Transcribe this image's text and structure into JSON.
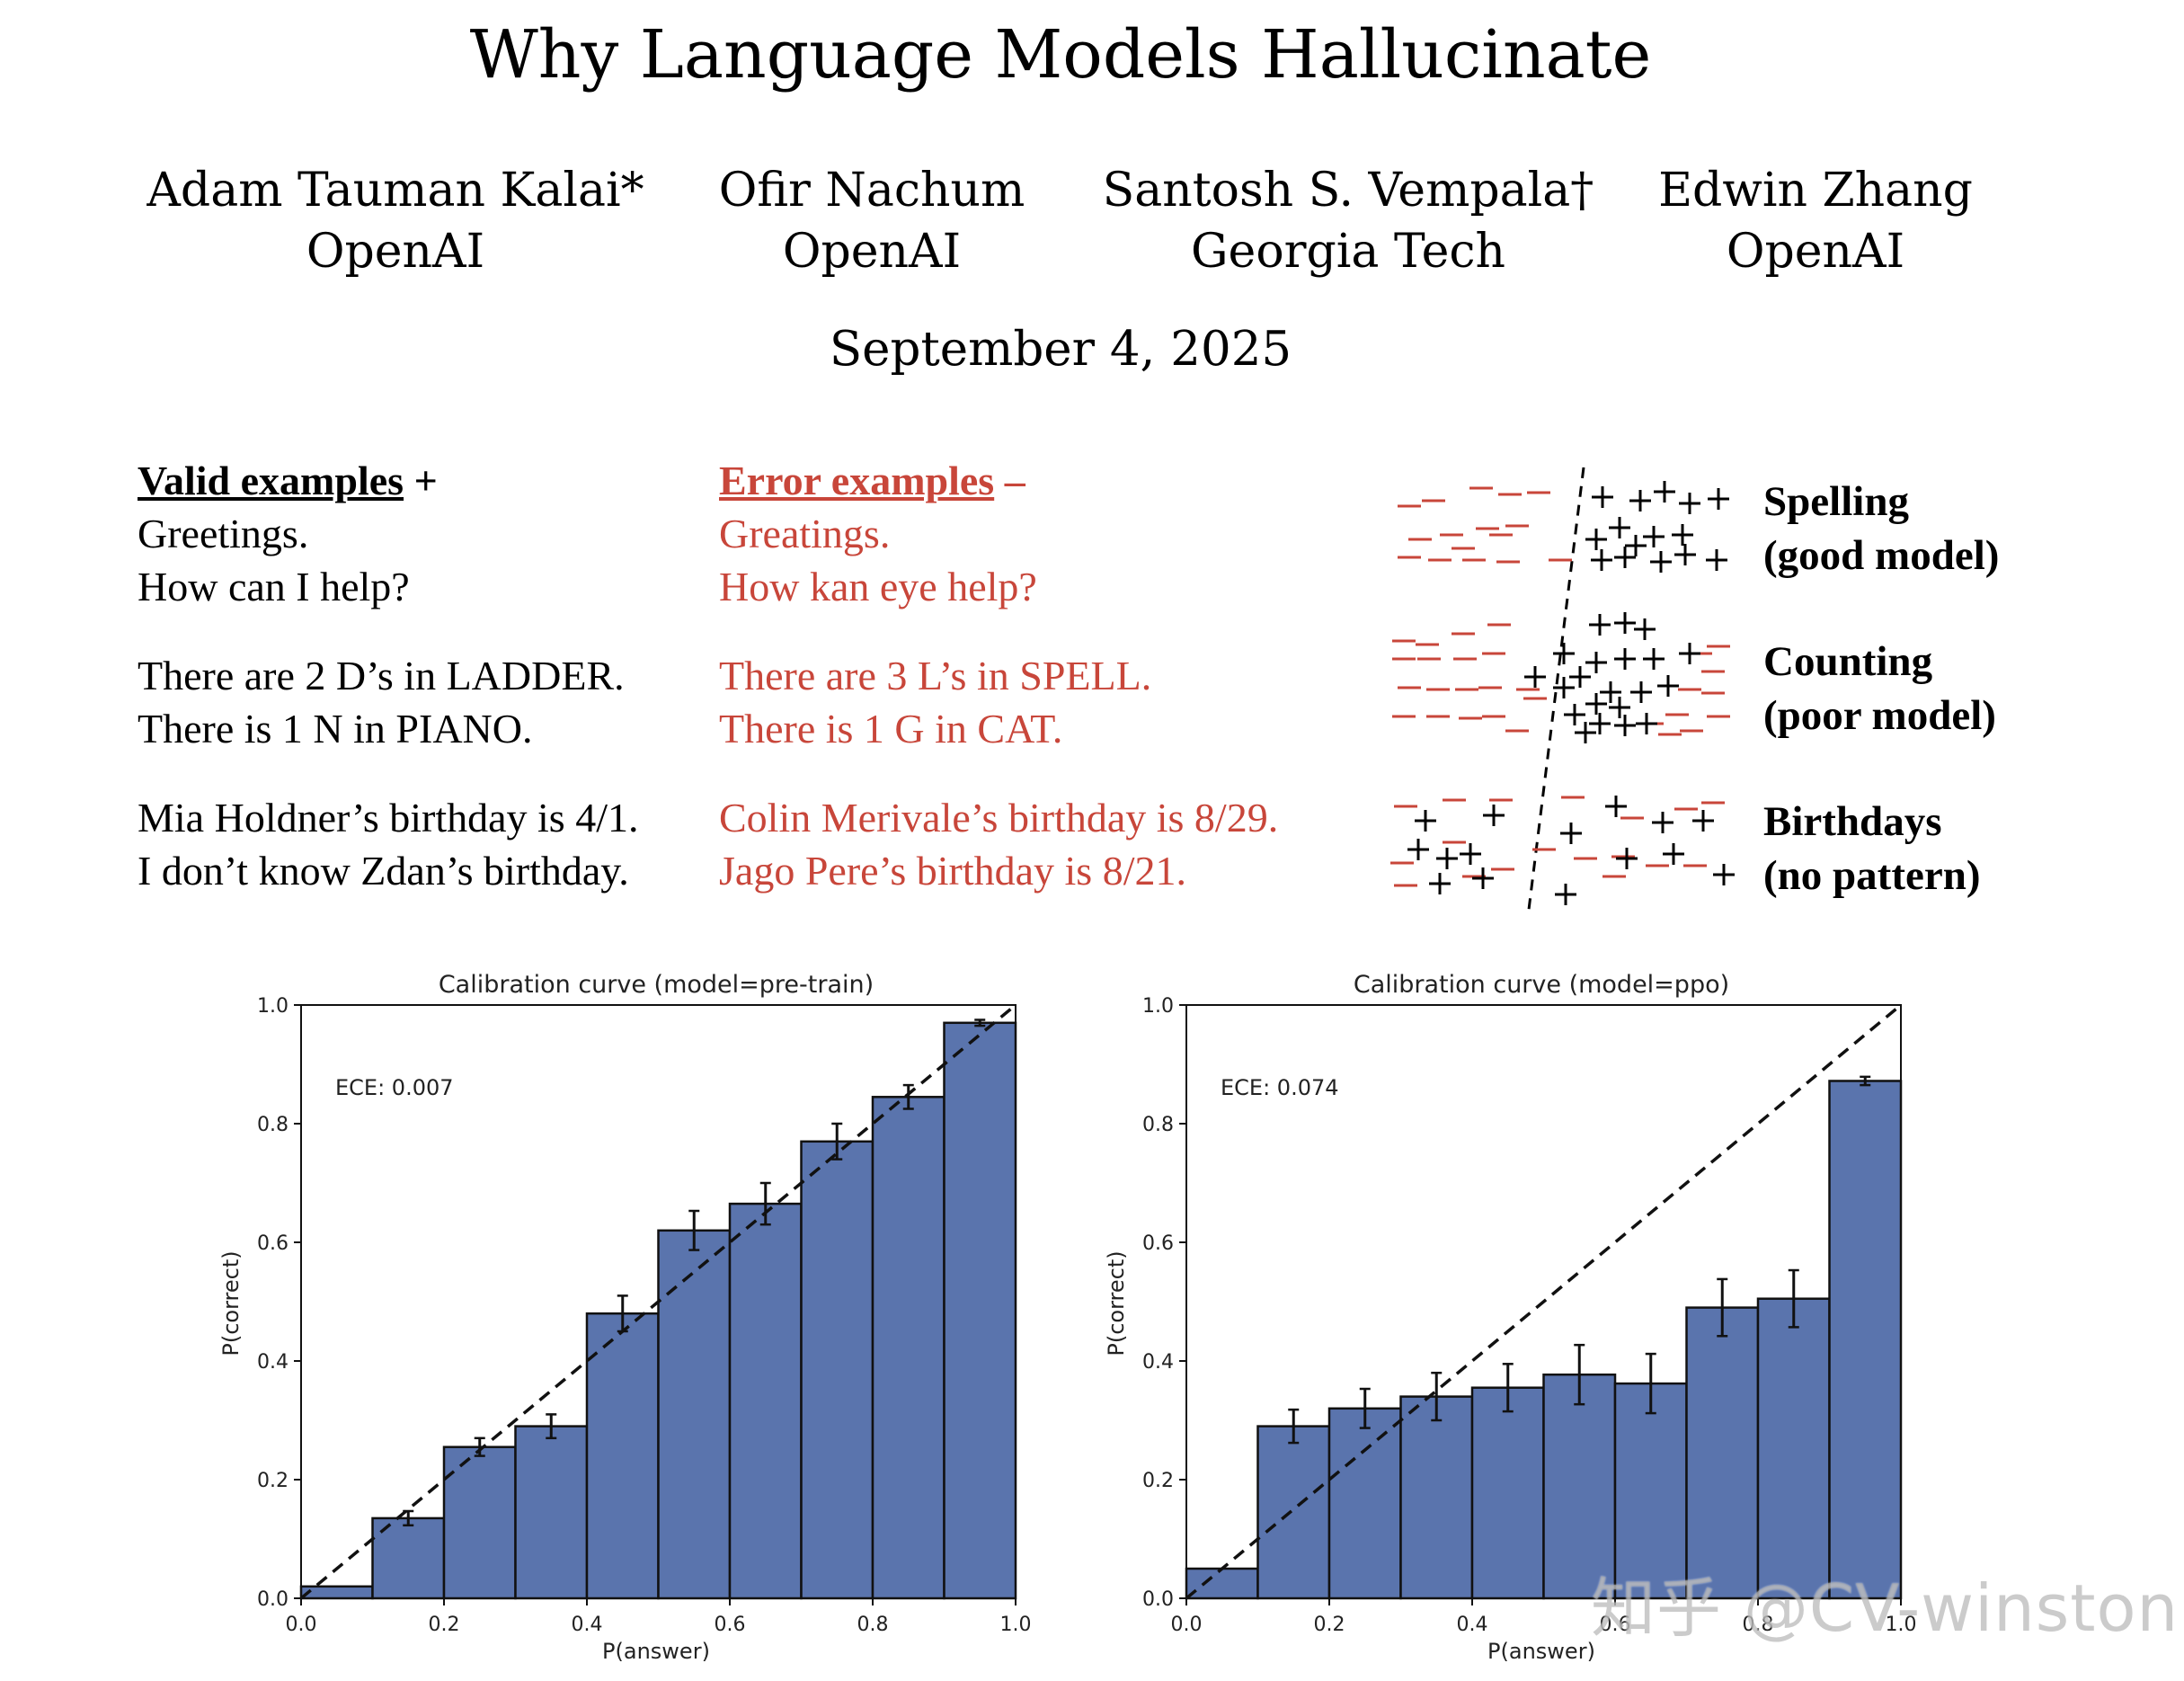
{
  "paper": {
    "title": "Why Language Models Hallucinate",
    "authors": [
      {
        "name": "Adam Tauman Kalai*",
        "affiliation": "OpenAI"
      },
      {
        "name": "Ofir Nachum",
        "affiliation": "OpenAI"
      },
      {
        "name": "Santosh S. Vempala†",
        "affiliation": "Georgia Tech"
      },
      {
        "name": "Edwin Zhang",
        "affiliation": "OpenAI"
      }
    ],
    "date": "September 4, 2025"
  },
  "figure1": {
    "valid": {
      "heading": "Valid examples",
      "sign": "+",
      "lines": [
        "Greetings.",
        "How can I help?",
        "There are 2 D’s in LADDER.",
        "There is 1 N in PIANO.",
        "Mia Holdner’s birthday is 4/1.",
        "I don’t know Zdan’s birthday."
      ]
    },
    "error": {
      "heading": "Error examples",
      "sign": "–",
      "lines": [
        "Greatings.",
        "How kan eye help?",
        "There are 3 L’s in SPELL.",
        "There is 1 G in CAT.",
        "Colin Merivale’s birthday is 8/29.",
        "Jago Pere’s birthday is 8/21."
      ]
    },
    "panels": [
      {
        "title": "Spelling",
        "subtitle": "(good model)"
      },
      {
        "title": "Counting",
        "subtitle": "(poor model)"
      },
      {
        "title": "Birthdays",
        "subtitle": "(no pattern)"
      }
    ],
    "colors": {
      "error": "#c8463a",
      "valid": "#000000"
    }
  },
  "chart_data": [
    {
      "type": "bar",
      "title": "Calibration curve (model=pre-train)",
      "xlabel": "P(answer)",
      "ylabel": "P(correct)",
      "annotation": "ECE: 0.007",
      "xlim": [
        0.0,
        1.0
      ],
      "ylim": [
        0.0,
        1.0
      ],
      "xticks": [
        "0.0",
        "0.2",
        "0.4",
        "0.6",
        "0.8",
        "1.0"
      ],
      "yticks": [
        "0.0",
        "0.2",
        "0.4",
        "0.6",
        "0.8",
        "1.0"
      ],
      "bin_edges": [
        0.0,
        0.1,
        0.2,
        0.3,
        0.4,
        0.5,
        0.6,
        0.7,
        0.8,
        0.9,
        1.0
      ],
      "values": [
        0.02,
        0.135,
        0.255,
        0.29,
        0.48,
        0.62,
        0.665,
        0.77,
        0.845,
        0.97
      ],
      "errors": [
        0.0,
        0.012,
        0.015,
        0.02,
        0.03,
        0.033,
        0.035,
        0.03,
        0.02,
        0.005
      ],
      "diagonal": true,
      "bar_color": "#5a74ad"
    },
    {
      "type": "bar",
      "title": "Calibration curve (model=ppo)",
      "xlabel": "P(answer)",
      "ylabel": "P(correct)",
      "annotation": "ECE: 0.074",
      "xlim": [
        0.0,
        1.0
      ],
      "ylim": [
        0.0,
        1.0
      ],
      "xticks": [
        "0.0",
        "0.2",
        "0.4",
        "0.6",
        "0.8",
        "1.0"
      ],
      "yticks": [
        "0.0",
        "0.2",
        "0.4",
        "0.6",
        "0.8",
        "1.0"
      ],
      "bin_edges": [
        0.0,
        0.1,
        0.2,
        0.3,
        0.4,
        0.5,
        0.6,
        0.7,
        0.8,
        0.9,
        1.0
      ],
      "values": [
        0.05,
        0.29,
        0.32,
        0.34,
        0.355,
        0.377,
        0.362,
        0.49,
        0.505,
        0.872
      ],
      "errors": [
        0.0,
        0.028,
        0.033,
        0.04,
        0.04,
        0.05,
        0.05,
        0.048,
        0.048,
        0.007
      ],
      "diagonal": true,
      "bar_color": "#5a74ad"
    }
  ],
  "watermark": "知乎 @CV-winston"
}
